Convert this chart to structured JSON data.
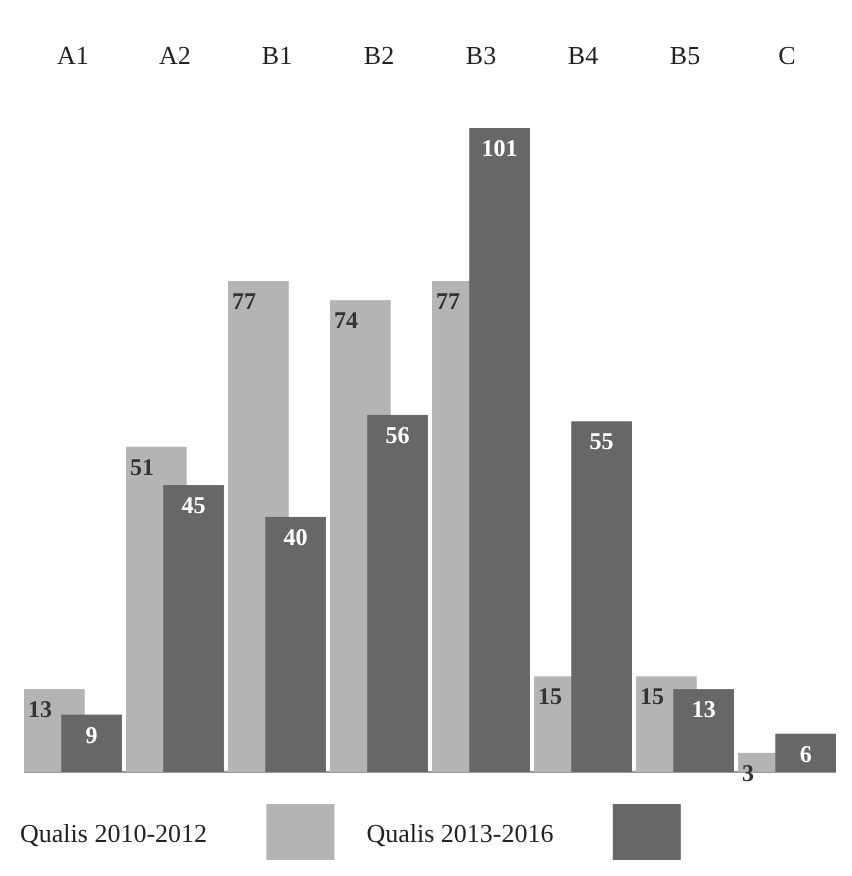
{
  "chart_data": {
    "type": "bar",
    "categories": [
      "A1",
      "A2",
      "B1",
      "B2",
      "B3",
      "B4",
      "B5",
      "C"
    ],
    "series": [
      {
        "name": "Qualis 2010-2012",
        "color": "#b4b4b4",
        "values": [
          13,
          51,
          77,
          74,
          77,
          15,
          15,
          3
        ]
      },
      {
        "name": "Qualis 2013-2016",
        "color": "#676767",
        "values": [
          9,
          45,
          40,
          56,
          101,
          55,
          13,
          6
        ]
      }
    ],
    "data_labels": true,
    "legend": "bottom",
    "grid": false
  }
}
